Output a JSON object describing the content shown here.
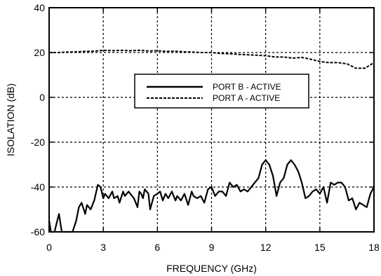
{
  "chart_data": {
    "type": "line",
    "xlabel": "FREQUENCY (GHz)",
    "ylabel": "ISOLATION (dB)",
    "xlim": [
      0,
      18
    ],
    "ylim": [
      -60,
      40
    ],
    "x_ticks": [
      0,
      3,
      6,
      9,
      12,
      15,
      18
    ],
    "y_ticks": [
      -60,
      -40,
      -20,
      0,
      20,
      40
    ],
    "x_tick_labels": [
      "0",
      "3",
      "6",
      "9",
      "12",
      "15",
      "18"
    ],
    "y_tick_labels": [
      "-60",
      "-40",
      "-20",
      "0",
      "20",
      "40"
    ],
    "grid": true,
    "grid_style": "dotted",
    "legend_position": "center-right",
    "series": [
      {
        "name": "PORT B - ACTIVE",
        "line_style": "solid",
        "color": "#000000",
        "x": [
          0,
          0.1,
          0.2,
          0.3,
          0.45,
          0.55,
          0.7,
          0.9,
          1.1,
          1.3,
          1.5,
          1.65,
          1.8,
          2.0,
          2.1,
          2.3,
          2.5,
          2.7,
          2.85,
          3.0,
          3.1,
          3.3,
          3.5,
          3.6,
          3.8,
          3.9,
          4.1,
          4.2,
          4.3,
          4.4,
          4.6,
          4.7,
          4.9,
          5.0,
          5.1,
          5.2,
          5.3,
          5.5,
          5.6,
          5.8,
          6.0,
          6.15,
          6.3,
          6.45,
          6.6,
          6.8,
          7.0,
          7.1,
          7.3,
          7.5,
          7.7,
          7.9,
          8.0,
          8.2,
          8.4,
          8.6,
          8.8,
          9.0,
          9.2,
          9.4,
          9.6,
          9.8,
          10.0,
          10.2,
          10.4,
          10.6,
          10.8,
          11.0,
          11.2,
          11.4,
          11.6,
          11.8,
          12.0,
          12.2,
          12.4,
          12.6,
          12.8,
          13.0,
          13.2,
          13.4,
          13.6,
          13.8,
          14.0,
          14.2,
          14.4,
          14.6,
          14.8,
          15.0,
          15.2,
          15.4,
          15.6,
          15.8,
          16.0,
          16.2,
          16.4,
          16.6,
          16.8,
          17.0,
          17.2,
          17.4,
          17.6,
          17.8,
          18.0
        ],
        "values": [
          -55,
          -60,
          -60,
          -60,
          -55,
          -52,
          -60,
          -60,
          -60,
          -60,
          -55,
          -49,
          -47,
          -52,
          -48,
          -50,
          -46,
          -39,
          -40,
          -45,
          -43,
          -45,
          -42,
          -45,
          -44,
          -47,
          -42,
          -44,
          -43,
          -42,
          -44,
          -45,
          -49,
          -42,
          -43,
          -45,
          -41,
          -43,
          -50,
          -44,
          -43,
          -42,
          -46,
          -43,
          -45,
          -42,
          -46,
          -44,
          -46,
          -43,
          -48,
          -42,
          -44,
          -45,
          -44,
          -47,
          -41,
          -40,
          -44,
          -42,
          -42,
          -44,
          -38,
          -40,
          -39,
          -42,
          -41,
          -42,
          -40,
          -38,
          -36,
          -30,
          -28,
          -30,
          -35,
          -44,
          -38,
          -36,
          -30,
          -28,
          -30,
          -33,
          -38,
          -45,
          -44,
          -42,
          -41,
          -43,
          -40,
          -47,
          -38,
          -39,
          -38,
          -38,
          -40,
          -46,
          -45,
          -50,
          -47,
          -48,
          -49,
          -43,
          -40
        ]
      },
      {
        "name": "PORT A - ACTIVE",
        "line_style": "dashed",
        "color": "#000000",
        "x": [
          0,
          0.5,
          1.0,
          1.5,
          2.0,
          2.5,
          3.0,
          3.5,
          4.0,
          4.5,
          5.0,
          5.5,
          6.0,
          6.5,
          7.0,
          7.5,
          8.0,
          8.5,
          9.0,
          9.5,
          10.0,
          10.5,
          11.0,
          11.5,
          12.0,
          12.5,
          13.0,
          13.5,
          14.0,
          14.5,
          15.0,
          15.5,
          16.0,
          16.5,
          17.0,
          17.5,
          18.0
        ],
        "values": [
          20,
          20,
          20.2,
          20.3,
          20.5,
          20.6,
          21,
          20.8,
          21,
          20.8,
          21,
          20.7,
          20.8,
          20.5,
          20.6,
          20.3,
          20.2,
          20,
          20,
          19.6,
          19.5,
          19.2,
          19,
          18.8,
          18.6,
          18,
          18,
          17.5,
          17.8,
          17,
          16,
          15.5,
          15.5,
          15,
          13,
          13,
          15.5
        ]
      }
    ]
  }
}
